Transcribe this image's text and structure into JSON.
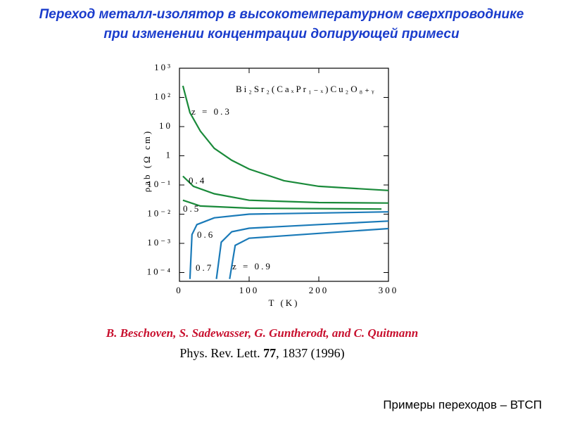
{
  "title": [
    "Переход металл-изолятор в высокотемпературном сверхпроводнике",
    "при изменении концентрации допирующей примеси"
  ],
  "citation": {
    "authors": "B. Beschoven, S. Sadewasser, G. Guntherodt, and C. Quitmann",
    "journal": "Phys. Rev. Lett.",
    "volume": "77",
    "pages": ", 1837 (1996)"
  },
  "footer": "Примеры переходов – ВТСП",
  "chart_data": {
    "type": "line",
    "log_y": true,
    "annotation": "Bi₂Sr₂(CaₓPr₁₋ₓ)Cu₂O₈₊ᵧ",
    "x_label": "T (K)",
    "y_label": "ρab (Ω cm)",
    "xlim": [
      0,
      300
    ],
    "xticks": [
      0,
      100,
      200,
      300
    ],
    "ylim": [
      5e-05,
      1000
    ],
    "yticks": [
      {
        "value": 1000,
        "label": "10³"
      },
      {
        "value": 100,
        "label": "10²"
      },
      10,
      1,
      {
        "value": 0.1,
        "label": "10⁻¹"
      },
      {
        "value": 0.01,
        "label": "10⁻²"
      },
      {
        "value": 0.001,
        "label": "10⁻³"
      },
      {
        "value": 0.0001,
        "label": "10⁻⁴"
      }
    ],
    "series": [
      {
        "name": "z = 0.3",
        "color": "#1a8a3a",
        "x": [
          5,
          15,
          30,
          50,
          75,
          100,
          150,
          200,
          300
        ],
        "values": [
          250,
          30,
          7,
          1.8,
          0.7,
          0.35,
          0.14,
          0.09,
          0.065
        ]
      },
      {
        "name": "0.4",
        "color": "#1a8a3a",
        "x": [
          5,
          20,
          50,
          100,
          200,
          300
        ],
        "values": [
          0.2,
          0.09,
          0.05,
          0.03,
          0.025,
          0.024
        ]
      },
      {
        "name": "0.5",
        "color": "#1a8a3a",
        "x": [
          5,
          30,
          100,
          290
        ],
        "values": [
          0.03,
          0.019,
          0.016,
          0.015
        ]
      },
      {
        "name": "0.6",
        "color": "#1a7ab8",
        "x": [
          15,
          18,
          25,
          50,
          100,
          300
        ],
        "values": [
          6e-05,
          0.002,
          0.0044,
          0.0075,
          0.01,
          0.012
        ]
      },
      {
        "name": "0.7",
        "color": "#1a7ab8",
        "x": [
          53,
          60,
          75,
          100,
          200,
          300
        ],
        "values": [
          6e-05,
          0.0011,
          0.0025,
          0.0033,
          0.0044,
          0.0058
        ]
      },
      {
        "name": "z = 0.9",
        "color": "#1a7ab8",
        "x": [
          72,
          80,
          100,
          200,
          300
        ],
        "values": [
          6e-05,
          0.00085,
          0.0015,
          0.0022,
          0.0032
        ]
      }
    ]
  }
}
